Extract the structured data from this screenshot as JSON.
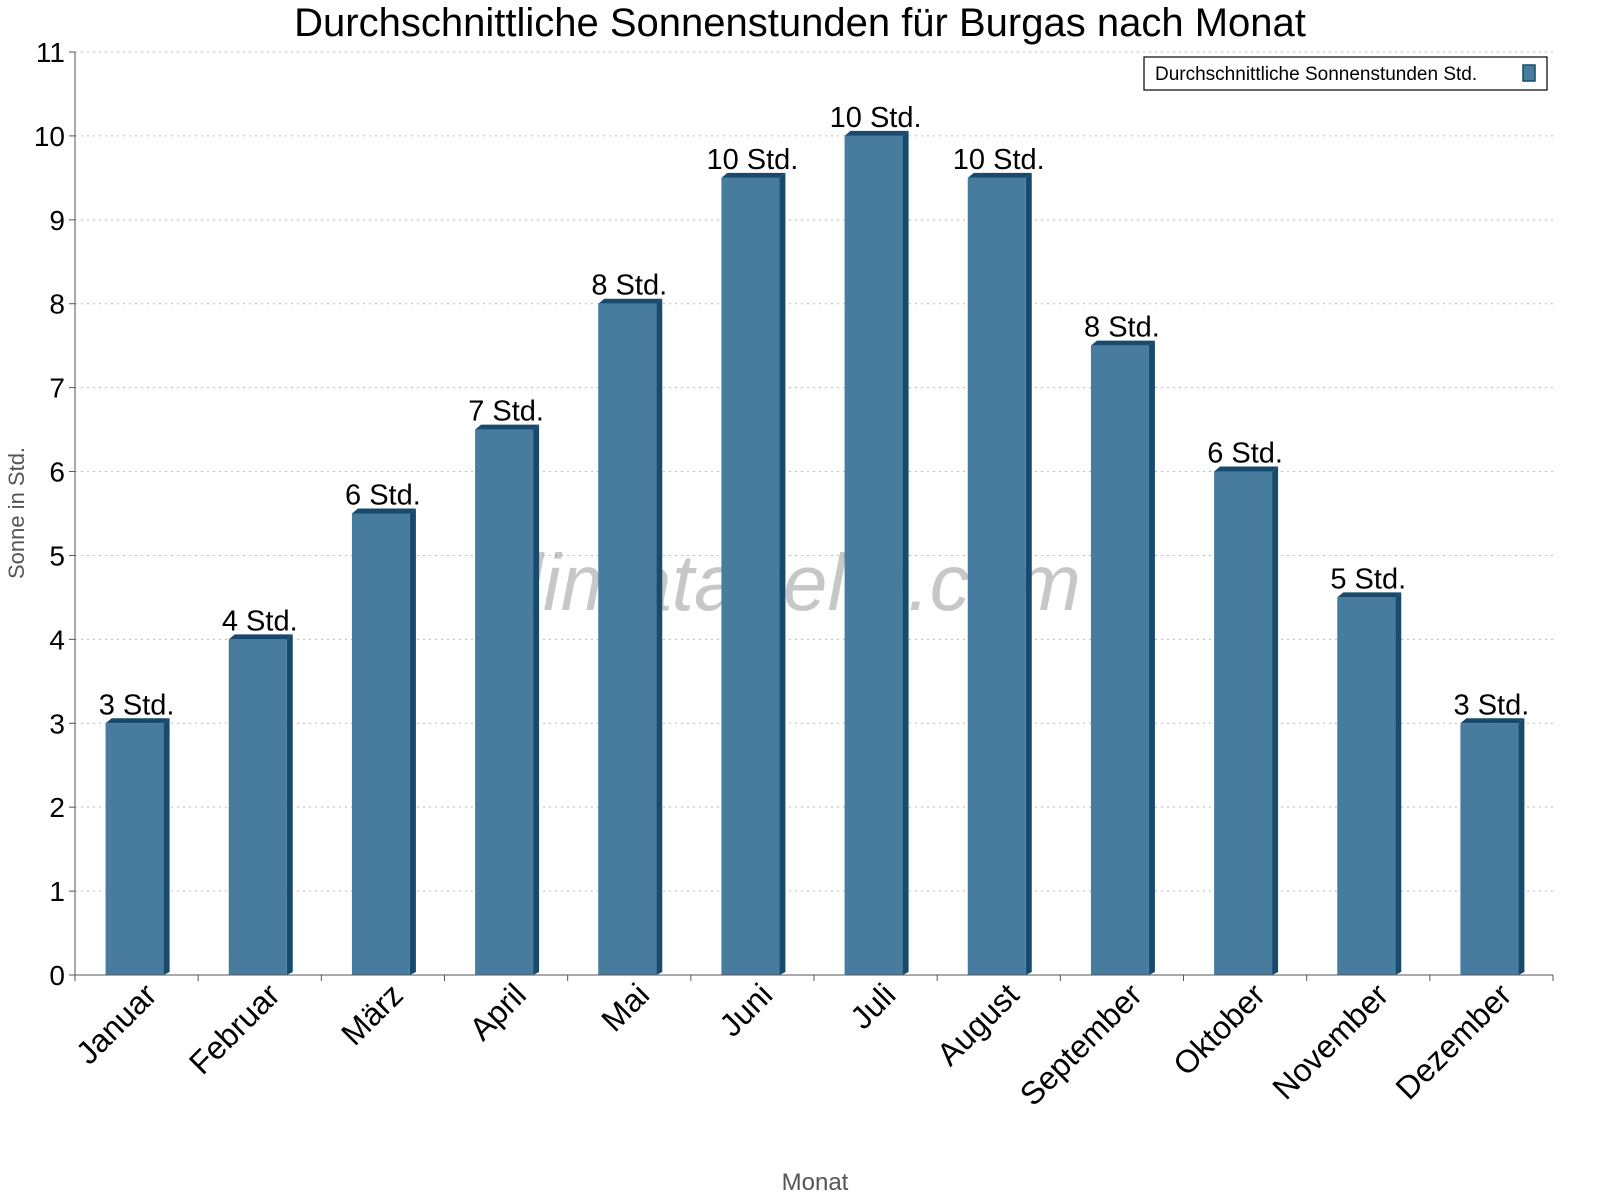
{
  "chart_data": {
    "type": "bar",
    "title": "Durchschnittliche Sonnenstunden für Burgas nach Monat",
    "xlabel": "Monat",
    "ylabel": "Sonne in Std.",
    "ylim": [
      0,
      11
    ],
    "yticks": [
      "0",
      "1",
      "2",
      "3",
      "4",
      "5",
      "6",
      "7",
      "8",
      "9",
      "10",
      "11"
    ],
    "grid": true,
    "legend_position": "top-right",
    "categories": [
      "Januar",
      "Februar",
      "März",
      "April",
      "Mai",
      "Juni",
      "Juli",
      "August",
      "September",
      "Oktober",
      "November",
      "Dezember"
    ],
    "series": [
      {
        "name": "Durchschnittliche Sonnenstunden Std.",
        "values": [
          3,
          4,
          5.5,
          6.5,
          8,
          9.5,
          10,
          9.5,
          7.5,
          6,
          4.5,
          3
        ],
        "labels": [
          "3 Std.",
          "4 Std.",
          "6 Std.",
          "7 Std.",
          "8 Std.",
          "10 Std.",
          "10 Std.",
          "10 Std.",
          "8 Std.",
          "6 Std.",
          "5 Std.",
          "3 Std."
        ],
        "color": "#477c9e",
        "edge_color": "#174a6c"
      }
    ],
    "watermark": "klimatabelle.com"
  }
}
